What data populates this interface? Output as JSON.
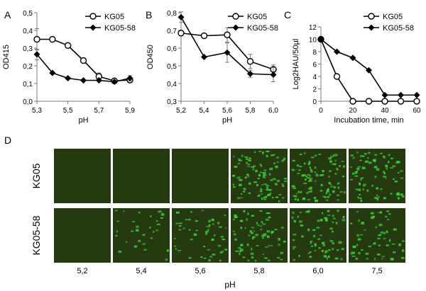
{
  "figure": {
    "panel_d": {
      "label": "D",
      "row_labels": [
        "KG05",
        "KG05-58"
      ],
      "column_labels": [
        "5,2",
        "5,4",
        "5,6",
        "5,8",
        "6,0",
        "7,5"
      ],
      "xlabel": "pH",
      "background_color": "#263a12",
      "cell_color": "#3dcc3a",
      "cell_fraction": {
        "KG05": [
          0,
          0,
          0,
          0.55,
          0.6,
          0.5
        ],
        "KG05-58": [
          0,
          0.18,
          0.3,
          0.42,
          0.4,
          0.36
        ]
      }
    }
  },
  "chart_data": [
    {
      "panel": "A",
      "type": "line",
      "title": "",
      "xlabel": "pH",
      "ylabel": "OD415",
      "xlim": [
        5.3,
        5.9
      ],
      "ylim": [
        0,
        0.5
      ],
      "x_ticks": [
        5.3,
        5.5,
        5.7,
        5.9
      ],
      "x_tick_labels": [
        "5,3",
        "5,5",
        "5,7",
        "5,9"
      ],
      "y_ticks": [
        0,
        0.1,
        0.2,
        0.3,
        0.4,
        0.5
      ],
      "y_tick_labels": [
        "0,0",
        "0,1",
        "0,2",
        "0,3",
        "0,4",
        "0,5"
      ],
      "legend": "top-right",
      "series": [
        {
          "name": "KG05",
          "marker": "open-circle",
          "x": [
            5.3,
            5.4,
            5.5,
            5.6,
            5.7,
            5.8,
            5.9
          ],
          "y": [
            0.35,
            0.35,
            0.315,
            0.23,
            0.14,
            0.115,
            0.12
          ],
          "err": [
            0.06,
            0,
            0,
            0,
            0.02,
            0,
            0.015
          ]
        },
        {
          "name": "KG05-58",
          "marker": "filled-diamond",
          "x": [
            5.3,
            5.4,
            5.5,
            5.6,
            5.7,
            5.8,
            5.9
          ],
          "y": [
            0.265,
            0.16,
            0.13,
            0.118,
            0.118,
            0.11,
            0.13
          ],
          "err": [
            0.03,
            0,
            0,
            0,
            0,
            0,
            0.015
          ]
        }
      ]
    },
    {
      "panel": "B",
      "type": "line",
      "title": "",
      "xlabel": "pH",
      "ylabel": "OD450",
      "xlim": [
        5.2,
        6.0
      ],
      "ylim": [
        0.3,
        0.8
      ],
      "x_ticks": [
        5.2,
        5.4,
        5.6,
        5.8,
        6.0
      ],
      "x_tick_labels": [
        "5,2",
        "5,4",
        "5,6",
        "5,8",
        "6,0"
      ],
      "y_ticks": [
        0.3,
        0.4,
        0.5,
        0.6,
        0.7,
        0.8
      ],
      "y_tick_labels": [
        "0,3",
        "0,4",
        "0,5",
        "0,6",
        "0,7",
        "0,8"
      ],
      "legend": "top-right",
      "series": [
        {
          "name": "KG05",
          "marker": "open-circle",
          "x": [
            5.2,
            5.4,
            5.6,
            5.8,
            6.0
          ],
          "y": [
            0.685,
            0.67,
            0.675,
            0.525,
            0.48
          ],
          "err": [
            0.015,
            0,
            0.04,
            0.04,
            0.025
          ]
        },
        {
          "name": "KG05-58",
          "marker": "filled-diamond",
          "x": [
            5.2,
            5.4,
            5.6,
            5.8,
            6.0
          ],
          "y": [
            0.775,
            0.55,
            0.575,
            0.455,
            0.45
          ],
          "err": [
            0.03,
            0,
            0.055,
            0.02,
            0.04
          ]
        }
      ]
    },
    {
      "panel": "C",
      "type": "line",
      "title": "",
      "xlabel": "Incubation time, min",
      "ylabel": "Log2HAU/50µl",
      "xlim": [
        0,
        60
      ],
      "ylim": [
        0,
        12
      ],
      "x_ticks": [
        0,
        20,
        40,
        60
      ],
      "x_tick_labels": [
        "0",
        "20",
        "40",
        "60"
      ],
      "y_ticks": [
        0,
        2,
        4,
        6,
        8,
        10,
        12
      ],
      "y_tick_labels": [
        "0",
        "2",
        "4",
        "6",
        "8",
        "10",
        "12"
      ],
      "legend": "top-right",
      "series": [
        {
          "name": "KG05",
          "marker": "open-circle",
          "x": [
            0,
            10,
            20,
            30,
            40,
            50,
            60
          ],
          "y": [
            10,
            4,
            0,
            0,
            0,
            0,
            0
          ]
        },
        {
          "name": "KG05-58",
          "marker": "filled-diamond",
          "x": [
            0,
            10,
            20,
            30,
            40,
            50,
            60
          ],
          "y": [
            10,
            8,
            7,
            5,
            1,
            1,
            1
          ]
        }
      ]
    }
  ]
}
